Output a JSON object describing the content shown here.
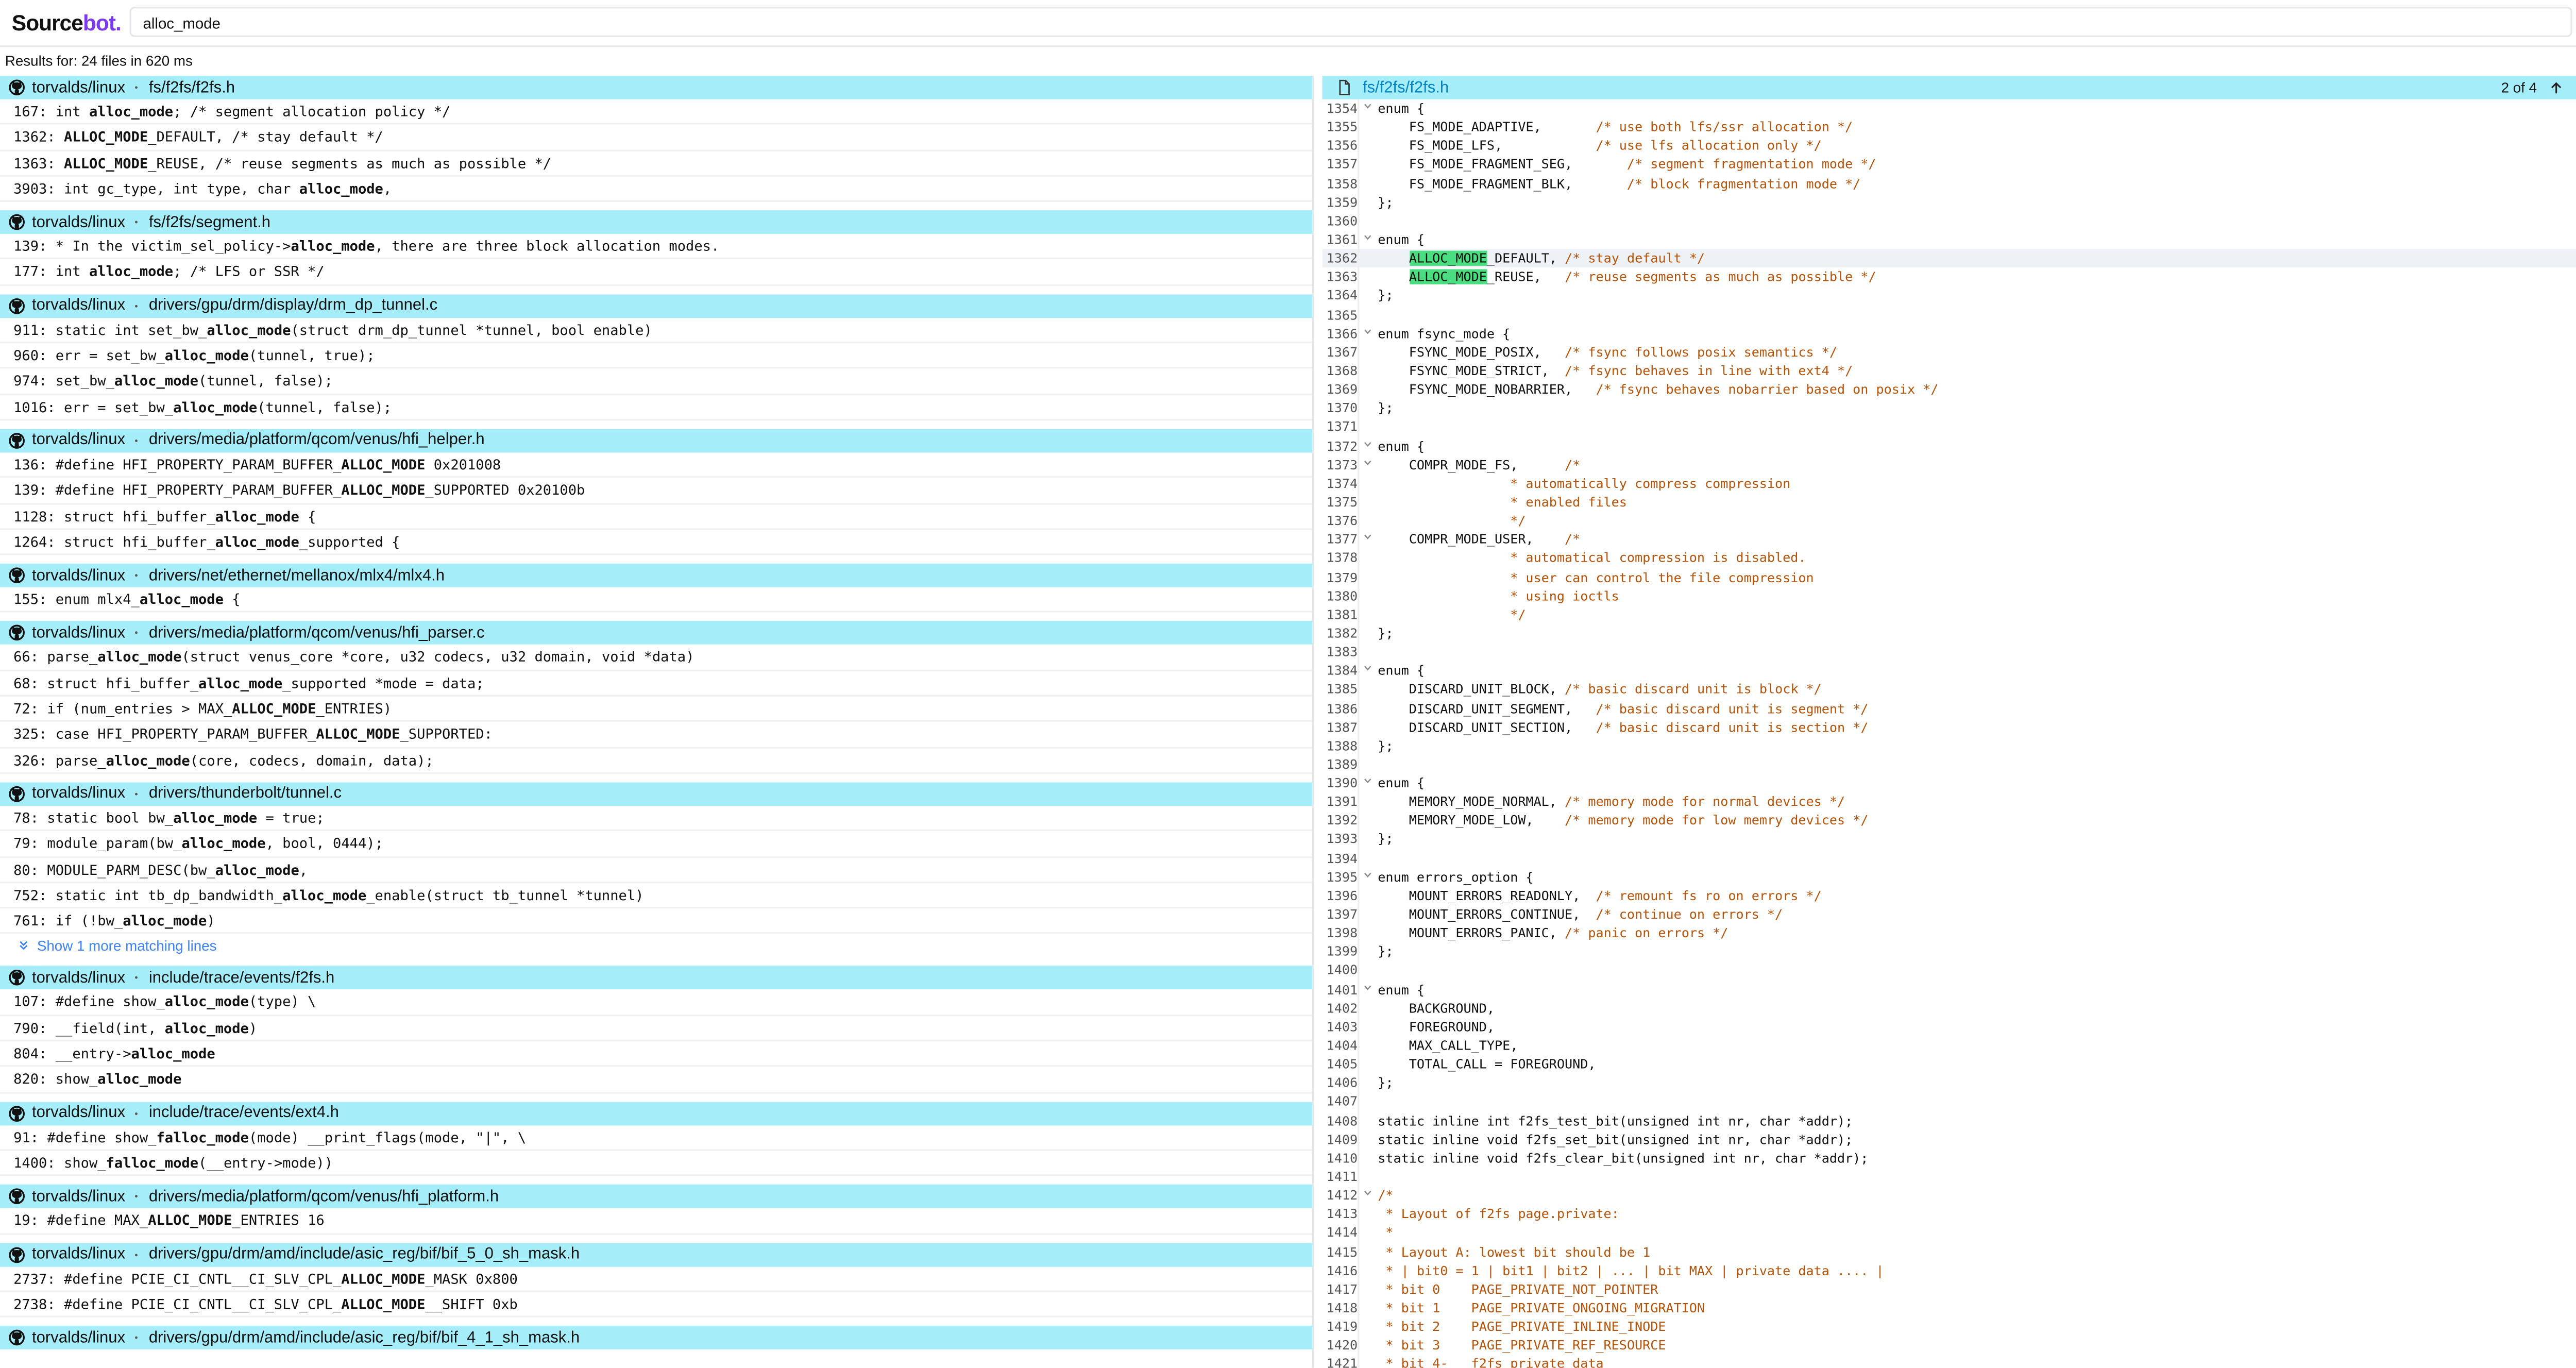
{
  "header": {
    "logo": [
      "Source",
      "bot."
    ],
    "query": "alloc_mode"
  },
  "results_summary": "Results for: 24 files in 620 ms",
  "results": [
    {
      "repo": "torvalds/linux",
      "path": "fs/f2fs/f2fs.h",
      "lines": [
        {
          "num": "167:",
          "parts": [
            "int ",
            "alloc_mode",
            "; /* segment allocation policy */"
          ]
        },
        {
          "num": "1362:",
          "parts": [
            "",
            "ALLOC_MODE",
            "_DEFAULT, /* stay default */"
          ]
        },
        {
          "num": "1363:",
          "parts": [
            "",
            "ALLOC_MODE",
            "_REUSE, /* reuse segments as much as possible */"
          ]
        },
        {
          "num": "3903:",
          "parts": [
            "int gc_type, int type, char ",
            "alloc_mode",
            ","
          ]
        }
      ]
    },
    {
      "repo": "torvalds/linux",
      "path": "fs/f2fs/segment.h",
      "lines": [
        {
          "num": "139:",
          "parts": [
            "* In the victim_sel_policy->",
            "alloc_mode",
            ", there are three block allocation modes."
          ]
        },
        {
          "num": "177:",
          "parts": [
            "int ",
            "alloc_mode",
            "; /* LFS or SSR */"
          ]
        }
      ]
    },
    {
      "repo": "torvalds/linux",
      "path": "drivers/gpu/drm/display/drm_dp_tunnel.c",
      "lines": [
        {
          "num": "911:",
          "parts": [
            "static int set_bw_",
            "alloc_mode",
            "(struct drm_dp_tunnel *tunnel, bool enable)"
          ]
        },
        {
          "num": "960:",
          "parts": [
            "err = set_bw_",
            "alloc_mode",
            "(tunnel, true);"
          ]
        },
        {
          "num": "974:",
          "parts": [
            "set_bw_",
            "alloc_mode",
            "(tunnel, false);"
          ]
        },
        {
          "num": "1016:",
          "parts": [
            "err = set_bw_",
            "alloc_mode",
            "(tunnel, false);"
          ]
        }
      ]
    },
    {
      "repo": "torvalds/linux",
      "path": "drivers/media/platform/qcom/venus/hfi_helper.h",
      "lines": [
        {
          "num": "136:",
          "parts": [
            "#define HFI_PROPERTY_PARAM_BUFFER_",
            "ALLOC_MODE",
            " 0x201008"
          ]
        },
        {
          "num": "139:",
          "parts": [
            "#define HFI_PROPERTY_PARAM_BUFFER_",
            "ALLOC_MODE",
            "_SUPPORTED 0x20100b"
          ]
        },
        {
          "num": "1128:",
          "parts": [
            "struct hfi_buffer_",
            "alloc_mode",
            " {"
          ]
        },
        {
          "num": "1264:",
          "parts": [
            "struct hfi_buffer_",
            "alloc_mode",
            "_supported {"
          ]
        }
      ]
    },
    {
      "repo": "torvalds/linux",
      "path": "drivers/net/ethernet/mellanox/mlx4/mlx4.h",
      "lines": [
        {
          "num": "155:",
          "parts": [
            "enum mlx4_",
            "alloc_mode",
            " {"
          ]
        }
      ]
    },
    {
      "repo": "torvalds/linux",
      "path": "drivers/media/platform/qcom/venus/hfi_parser.c",
      "lines": [
        {
          "num": "66:",
          "parts": [
            "parse_",
            "alloc_mode",
            "(struct venus_core *core, u32 codecs, u32 domain, void *data)"
          ]
        },
        {
          "num": "68:",
          "parts": [
            "struct hfi_buffer_",
            "alloc_mode",
            "_supported *mode = data;"
          ]
        },
        {
          "num": "72:",
          "parts": [
            "if (num_entries > MAX_",
            "ALLOC_MODE",
            "_ENTRIES)"
          ]
        },
        {
          "num": "325:",
          "parts": [
            "case HFI_PROPERTY_PARAM_BUFFER_",
            "ALLOC_MODE",
            "_SUPPORTED:"
          ]
        },
        {
          "num": "326:",
          "parts": [
            "parse_",
            "alloc_mode",
            "(core, codecs, domain, data);"
          ]
        }
      ]
    },
    {
      "repo": "torvalds/linux",
      "path": "drivers/thunderbolt/tunnel.c",
      "lines": [
        {
          "num": "78:",
          "parts": [
            "static bool bw_",
            "alloc_mode",
            " = true;"
          ]
        },
        {
          "num": "79:",
          "parts": [
            "module_param(bw_",
            "alloc_mode",
            ", bool, 0444);"
          ]
        },
        {
          "num": "80:",
          "parts": [
            "MODULE_PARM_DESC(bw_",
            "alloc_mode",
            ","
          ]
        },
        {
          "num": "752:",
          "parts": [
            "static int tb_dp_bandwidth_",
            "alloc_mode",
            "_enable(struct tb_tunnel *tunnel)"
          ]
        },
        {
          "num": "761:",
          "parts": [
            "if (!bw_",
            "alloc_mode",
            ")"
          ]
        }
      ],
      "more": "Show 1 more matching lines"
    },
    {
      "repo": "torvalds/linux",
      "path": "include/trace/events/f2fs.h",
      "lines": [
        {
          "num": "107:",
          "parts": [
            "#define show_",
            "alloc_mode",
            "(type) \\"
          ]
        },
        {
          "num": "790:",
          "parts": [
            "__field(int, ",
            "alloc_mode",
            ")"
          ]
        },
        {
          "num": "804:",
          "parts": [
            "__entry->",
            "alloc_mode",
            ""
          ]
        },
        {
          "num": "820:",
          "parts": [
            "show_",
            "alloc_mode",
            ""
          ]
        }
      ]
    },
    {
      "repo": "torvalds/linux",
      "path": "include/trace/events/ext4.h",
      "lines": [
        {
          "num": "91:",
          "parts": [
            "#define show_",
            "falloc_mode",
            "(mode) __print_flags(mode, \"|\", \\"
          ]
        },
        {
          "num": "1400:",
          "parts": [
            "show_",
            "falloc_mode",
            "(__entry->mode))"
          ]
        }
      ]
    },
    {
      "repo": "torvalds/linux",
      "path": "drivers/media/platform/qcom/venus/hfi_platform.h",
      "lines": [
        {
          "num": "19:",
          "parts": [
            "#define MAX_",
            "ALLOC_MODE",
            "_ENTRIES 16"
          ]
        }
      ]
    },
    {
      "repo": "torvalds/linux",
      "path": "drivers/gpu/drm/amd/include/asic_reg/bif/bif_5_0_sh_mask.h",
      "lines": [
        {
          "num": "2737:",
          "parts": [
            "#define PCIE_CI_CNTL__CI_SLV_CPL_",
            "ALLOC_MODE",
            "_MASK 0x800"
          ]
        },
        {
          "num": "2738:",
          "parts": [
            "#define PCIE_CI_CNTL__CI_SLV_CPL_",
            "ALLOC_MODE",
            "__SHIFT 0xb"
          ]
        }
      ]
    },
    {
      "repo": "torvalds/linux",
      "path": "drivers/gpu/drm/amd/include/asic_reg/bif/bif_4_1_sh_mask.h",
      "lines": []
    }
  ],
  "viewer": {
    "path": "fs/f2fs/f2fs.h",
    "position": "2 of 4",
    "lines": [
      {
        "n": "1354",
        "code": "enum {",
        "fold": true
      },
      {
        "n": "1355",
        "code": "    FS_MODE_ADAPTIVE,       ",
        "comment": "/* use both lfs/ssr allocation */"
      },
      {
        "n": "1356",
        "code": "    FS_MODE_LFS,            ",
        "comment": "/* use lfs allocation only */"
      },
      {
        "n": "1357",
        "code": "    FS_MODE_FRAGMENT_SEG,       ",
        "comment": "/* segment fragmentation mode */"
      },
      {
        "n": "1358",
        "code": "    FS_MODE_FRAGMENT_BLK,       ",
        "comment": "/* block fragmentation mode */"
      },
      {
        "n": "1359",
        "code": "};"
      },
      {
        "n": "1360"
      },
      {
        "n": "1361",
        "code": "enum {",
        "fold": true
      },
      {
        "n": "1362",
        "code": "    ALLOC_MODE_DEFAULT, ",
        "comment": "/* stay default */",
        "match": "ALLOC_MODE",
        "active": true
      },
      {
        "n": "1363",
        "code": "    ALLOC_MODE_REUSE,   ",
        "comment": "/* reuse segments as much as possible */",
        "match": "ALLOC_MODE"
      },
      {
        "n": "1364",
        "code": "};"
      },
      {
        "n": "1365"
      },
      {
        "n": "1366",
        "code": "enum fsync_mode {",
        "fold": true
      },
      {
        "n": "1367",
        "code": "    FSYNC_MODE_POSIX,   ",
        "comment": "/* fsync follows posix semantics */"
      },
      {
        "n": "1368",
        "code": "    FSYNC_MODE_STRICT,  ",
        "comment": "/* fsync behaves in line with ext4 */"
      },
      {
        "n": "1369",
        "code": "    FSYNC_MODE_NOBARRIER,   ",
        "comment": "/* fsync behaves nobarrier based on posix */"
      },
      {
        "n": "1370",
        "code": "};"
      },
      {
        "n": "1371"
      },
      {
        "n": "1372",
        "code": "enum {",
        "fold": true
      },
      {
        "n": "1373",
        "code": "    COMPR_MODE_FS,      ",
        "comment": "/*",
        "fold": true
      },
      {
        "n": "1374",
        "comment": "                 * automatically compress compression"
      },
      {
        "n": "1375",
        "comment": "                 * enabled files"
      },
      {
        "n": "1376",
        "comment": "                 */"
      },
      {
        "n": "1377",
        "code": "    COMPR_MODE_USER,    ",
        "comment": "/*",
        "fold": true
      },
      {
        "n": "1378",
        "comment": "                 * automatical compression is disabled."
      },
      {
        "n": "1379",
        "comment": "                 * user can control the file compression"
      },
      {
        "n": "1380",
        "comment": "                 * using ioctls"
      },
      {
        "n": "1381",
        "comment": "                 */"
      },
      {
        "n": "1382",
        "code": "};"
      },
      {
        "n": "1383"
      },
      {
        "n": "1384",
        "code": "enum {",
        "fold": true
      },
      {
        "n": "1385",
        "code": "    DISCARD_UNIT_BLOCK, ",
        "comment": "/* basic discard unit is block */"
      },
      {
        "n": "1386",
        "code": "    DISCARD_UNIT_SEGMENT,   ",
        "comment": "/* basic discard unit is segment */"
      },
      {
        "n": "1387",
        "code": "    DISCARD_UNIT_SECTION,   ",
        "comment": "/* basic discard unit is section */"
      },
      {
        "n": "1388",
        "code": "};"
      },
      {
        "n": "1389"
      },
      {
        "n": "1390",
        "code": "enum {",
        "fold": true
      },
      {
        "n": "1391",
        "code": "    MEMORY_MODE_NORMAL, ",
        "comment": "/* memory mode for normal devices */"
      },
      {
        "n": "1392",
        "code": "    MEMORY_MODE_LOW,    ",
        "comment": "/* memory mode for low memry devices */"
      },
      {
        "n": "1393",
        "code": "};"
      },
      {
        "n": "1394"
      },
      {
        "n": "1395",
        "code": "enum errors_option {",
        "fold": true
      },
      {
        "n": "1396",
        "code": "    MOUNT_ERRORS_READONLY,  ",
        "comment": "/* remount fs ro on errors */"
      },
      {
        "n": "1397",
        "code": "    MOUNT_ERRORS_CONTINUE,  ",
        "comment": "/* continue on errors */"
      },
      {
        "n": "1398",
        "code": "    MOUNT_ERRORS_PANIC, ",
        "comment": "/* panic on errors */"
      },
      {
        "n": "1399",
        "code": "};"
      },
      {
        "n": "1400"
      },
      {
        "n": "1401",
        "code": "enum {",
        "fold": true
      },
      {
        "n": "1402",
        "code": "    BACKGROUND,"
      },
      {
        "n": "1403",
        "code": "    FOREGROUND,"
      },
      {
        "n": "1404",
        "code": "    MAX_CALL_TYPE,"
      },
      {
        "n": "1405",
        "code": "    TOTAL_CALL = FOREGROUND,"
      },
      {
        "n": "1406",
        "code": "};"
      },
      {
        "n": "1407"
      },
      {
        "n": "1408",
        "code": "static inline int f2fs_test_bit(unsigned int nr, char *addr);"
      },
      {
        "n": "1409",
        "code": "static inline void f2fs_set_bit(unsigned int nr, char *addr);"
      },
      {
        "n": "1410",
        "code": "static inline void f2fs_clear_bit(unsigned int nr, char *addr);"
      },
      {
        "n": "1411"
      },
      {
        "n": "1412",
        "comment": "/*",
        "fold": true
      },
      {
        "n": "1413",
        "comment": " * Layout of f2fs page.private:"
      },
      {
        "n": "1414",
        "comment": " *"
      },
      {
        "n": "1415",
        "comment": " * Layout A: lowest bit should be 1"
      },
      {
        "n": "1416",
        "comment": " * | bit0 = 1 | bit1 | bit2 | ... | bit MAX | private data .... |"
      },
      {
        "n": "1417",
        "comment": " * bit 0    PAGE_PRIVATE_NOT_POINTER"
      },
      {
        "n": "1418",
        "comment": " * bit 1    PAGE_PRIVATE_ONGOING_MIGRATION"
      },
      {
        "n": "1419",
        "comment": " * bit 2    PAGE_PRIVATE_INLINE_INODE"
      },
      {
        "n": "1420",
        "comment": " * bit 3    PAGE_PRIVATE_REF_RESOURCE"
      },
      {
        "n": "1421",
        "comment": " * bit 4-   f2fs private data"
      }
    ]
  }
}
